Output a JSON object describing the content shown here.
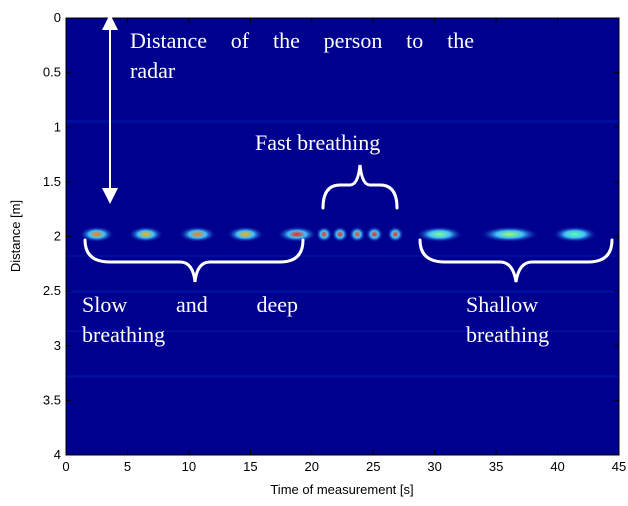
{
  "chart_data": {
    "type": "heatmap",
    "xlabel": "Time of measurement [s]",
    "ylabel": "Distance [m]",
    "xlim": [
      0,
      45
    ],
    "xticks": [
      0,
      5,
      10,
      15,
      20,
      25,
      30,
      35,
      40,
      45
    ],
    "ylim": [
      0,
      4
    ],
    "yticks": [
      0,
      0.5,
      1,
      1.5,
      2,
      2.5,
      3,
      3.5,
      4
    ],
    "y_inverted": true,
    "background": "#00008f",
    "x": [
      2.5,
      6.5,
      10.7,
      14.6,
      18.8,
      21.0,
      22.3,
      23.7,
      25.1,
      26.8,
      30.4,
      36.1,
      41.4
    ],
    "widths": [
      2.2,
      2.2,
      2.4,
      2.4,
      2.6,
      0.7,
      0.7,
      0.7,
      0.8,
      0.7,
      3.2,
      4.2,
      3.0
    ],
    "values": [
      1.98,
      1.98,
      1.98,
      1.98,
      1.98,
      1.98,
      1.98,
      1.98,
      1.98,
      1.98,
      1.98,
      1.98,
      1.98
    ],
    "colors": [
      "#ff8000",
      "#ffb000",
      "#ff8000",
      "#ffb000",
      "#ff2000",
      "#ff3000",
      "#ff2000",
      "#ff4000",
      "#ff2000",
      "#ff3000",
      "#80ff80",
      "#a0ff60",
      "#60ffa0"
    ],
    "annotations": [
      "Distance of the person to the radar",
      "Fast breathing",
      "Slow and deep breathing",
      "Shallow breathing"
    ]
  }
}
